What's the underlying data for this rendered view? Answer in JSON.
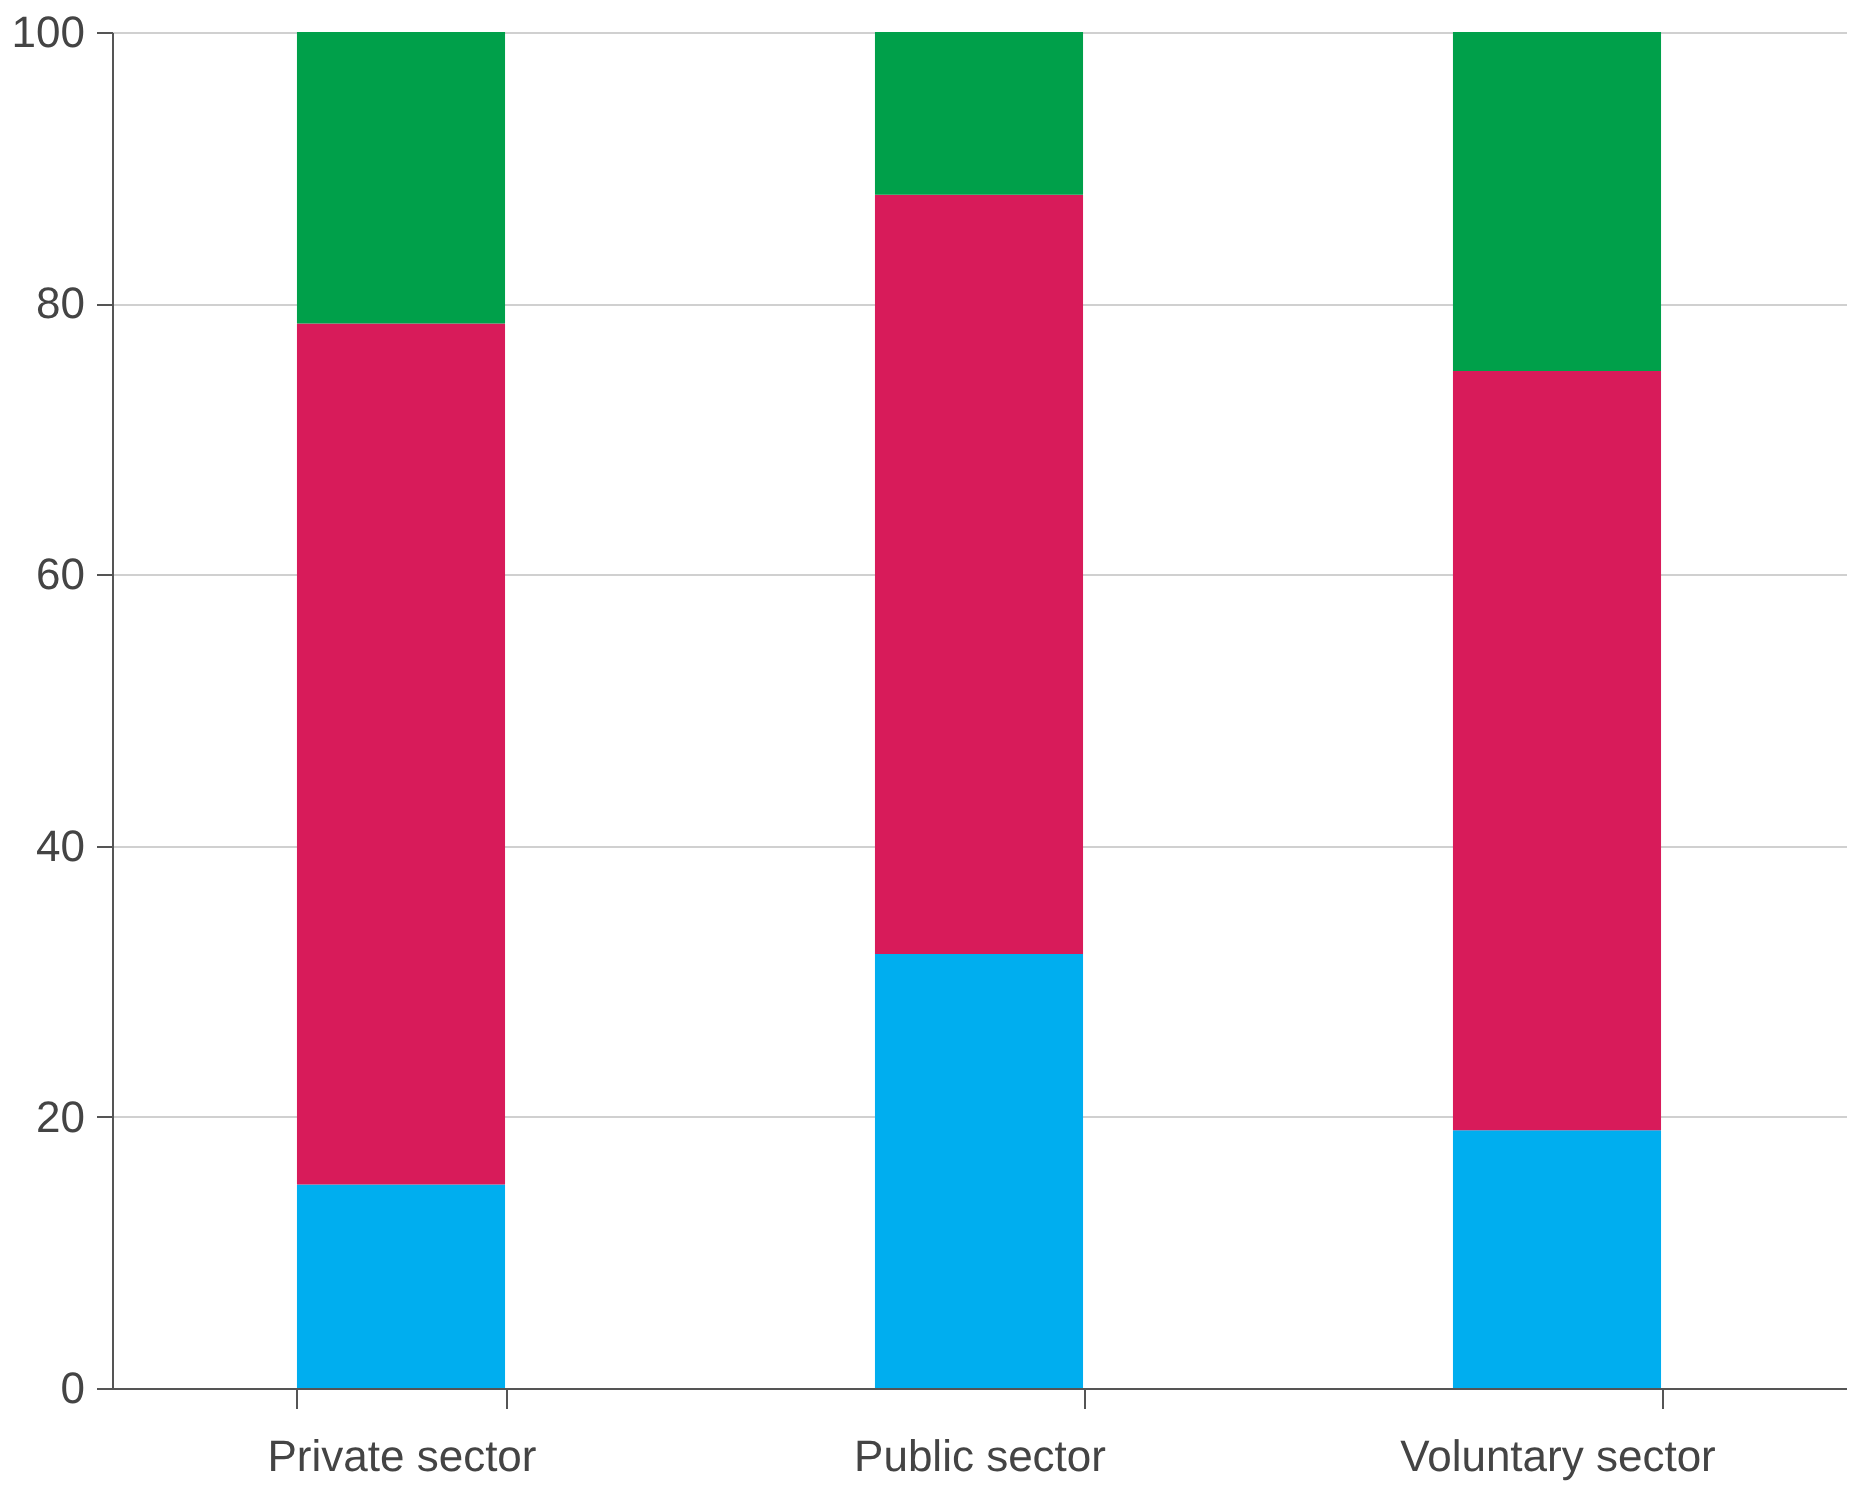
{
  "chart_data": {
    "type": "bar",
    "stacked": true,
    "categories": [
      "Private sector",
      "Public sector",
      "Voluntary sector"
    ],
    "series": [
      {
        "color": "#00aeef",
        "values": [
          15,
          32,
          19
        ]
      },
      {
        "color": "#d81b5a",
        "values": [
          63.5,
          56,
          56
        ]
      },
      {
        "color": "#00a04a",
        "values": [
          21.5,
          12,
          25
        ]
      }
    ],
    "ylim": [
      0,
      100
    ],
    "yticks": [
      0,
      20,
      40,
      60,
      80,
      100
    ],
    "grid": "y",
    "legend": false
  }
}
